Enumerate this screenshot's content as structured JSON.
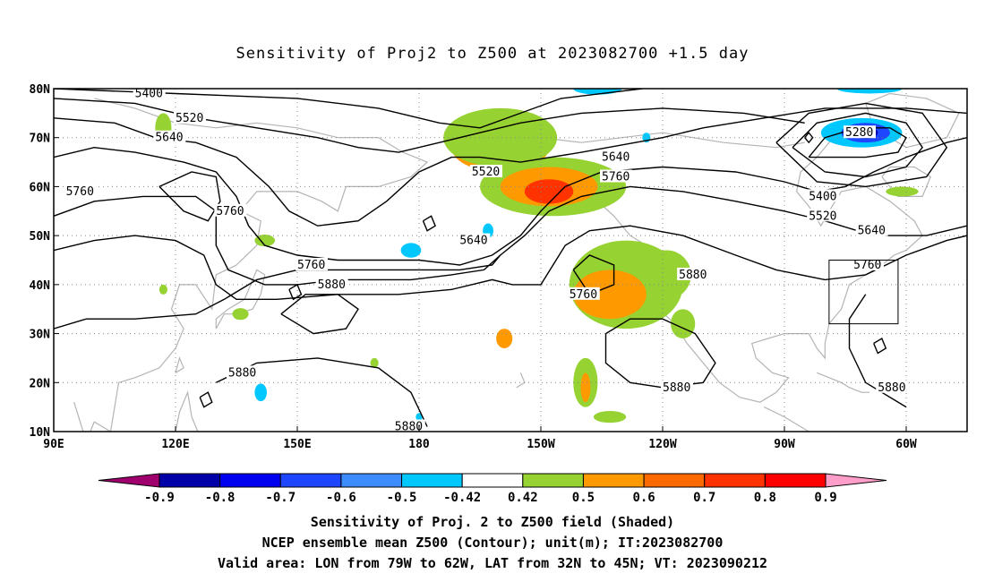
{
  "title": "Sensitivity of Proj2 to Z500 at 2023082700 +1.5 day",
  "map": {
    "lat_labels": [
      "80N",
      "70N",
      "60N",
      "50N",
      "40N",
      "30N",
      "20N",
      "10N"
    ],
    "lon_labels": [
      "90E",
      "120E",
      "150E",
      "180",
      "150W",
      "120W",
      "90W",
      "60W"
    ],
    "lon_range_deg_east": [
      90,
      315
    ],
    "lat_range_deg": [
      10,
      80
    ],
    "grid": "dotted",
    "contour_color": "#000000",
    "coastline_color": "#b4b4b4",
    "contour_labels": [
      {
        "text": "5400",
        "lon": 110,
        "lat": 79
      },
      {
        "text": "5520",
        "lon": 120,
        "lat": 74
      },
      {
        "text": "5640",
        "lon": 115,
        "lat": 70
      },
      {
        "text": "5760",
        "lon": 93,
        "lat": 59
      },
      {
        "text": "5760",
        "lon": 130,
        "lat": 55
      },
      {
        "text": "5760",
        "lon": 150,
        "lat": 44
      },
      {
        "text": "5880",
        "lon": 155,
        "lat": 40
      },
      {
        "text": "5520",
        "lon": 193,
        "lat": 63
      },
      {
        "text": "5640",
        "lon": 190,
        "lat": 49
      },
      {
        "text": "5640",
        "lon": 225,
        "lat": 66
      },
      {
        "text": "5760",
        "lon": 225,
        "lat": 62
      },
      {
        "text": "5880",
        "lon": 244,
        "lat": 42
      },
      {
        "text": "5760",
        "lon": 217,
        "lat": 38
      },
      {
        "text": "5880",
        "lon": 240,
        "lat": 19
      },
      {
        "text": "5880",
        "lon": 133,
        "lat": 22
      },
      {
        "text": "5880",
        "lon": 174,
        "lat": 11
      },
      {
        "text": "5280",
        "lon": 285,
        "lat": 71
      },
      {
        "text": "5400",
        "lon": 276,
        "lat": 58
      },
      {
        "text": "5520",
        "lon": 276,
        "lat": 54
      },
      {
        "text": "5640",
        "lon": 288,
        "lat": 51
      },
      {
        "text": "5760",
        "lon": 287,
        "lat": 44
      },
      {
        "text": "5880",
        "lon": 293,
        "lat": 19
      }
    ],
    "shaded_regions": [
      {
        "level": 0.6,
        "lon": 200,
        "lat": 68,
        "rlon": 12,
        "rlat": 5
      },
      {
        "level": 0.7,
        "lon": 200,
        "lat": 70,
        "rlon": 5,
        "rlat": 2
      },
      {
        "level": 0.5,
        "lon": 200,
        "lat": 70,
        "rlon": 14,
        "rlat": 6
      },
      {
        "level": 0.5,
        "lon": 213,
        "lat": 60,
        "rlon": 18,
        "rlat": 6
      },
      {
        "level": 0.6,
        "lon": 212,
        "lat": 60,
        "rlon": 12,
        "rlat": 4
      },
      {
        "level": 0.7,
        "lon": 212,
        "lat": 59,
        "rlon": 6,
        "rlat": 2.5
      },
      {
        "level": 0.5,
        "lon": 231,
        "lat": 40,
        "rlon": 14,
        "rlat": 9
      },
      {
        "level": 0.6,
        "lon": 227,
        "lat": 38,
        "rlon": 9,
        "rlat": 5
      },
      {
        "level": 0.5,
        "lon": 241,
        "lat": 42,
        "rlon": 6,
        "rlat": 5
      },
      {
        "level": 0.5,
        "lon": 245,
        "lat": 32,
        "rlon": 3,
        "rlat": 3
      },
      {
        "level": 0.5,
        "lon": 221,
        "lat": 20,
        "rlon": 3,
        "rlat": 5
      },
      {
        "level": 0.6,
        "lon": 221,
        "lat": 19,
        "rlon": 1.2,
        "rlat": 3
      },
      {
        "level": 0.5,
        "lon": 227,
        "lat": 13,
        "rlon": 4,
        "rlat": 1.2
      },
      {
        "level": 0.6,
        "lon": 201,
        "lat": 29,
        "rlon": 2,
        "rlat": 2
      },
      {
        "level": 0.5,
        "lon": 117,
        "lat": 72,
        "rlon": 2,
        "rlat": 3
      },
      {
        "level": 0.5,
        "lon": 142,
        "lat": 49,
        "rlon": 2.5,
        "rlat": 1.2
      },
      {
        "level": 0.5,
        "lon": 136,
        "lat": 34,
        "rlon": 2,
        "rlat": 1.2
      },
      {
        "level": 0.5,
        "lon": 117,
        "lat": 39,
        "rlon": 1,
        "rlat": 1
      },
      {
        "level": 0.5,
        "lon": 169,
        "lat": 24,
        "rlon": 1,
        "rlat": 1
      },
      {
        "level": 0.5,
        "lon": 299,
        "lat": 59,
        "rlon": 4,
        "rlat": 1
      },
      {
        "level": -0.42,
        "lon": 289,
        "lat": 71,
        "rlon": 10,
        "rlat": 3
      },
      {
        "level": -0.6,
        "lon": 290,
        "lat": 71,
        "rlon": 6,
        "rlat": 2
      },
      {
        "level": -0.8,
        "lon": 290,
        "lat": 71,
        "rlon": 3,
        "rlat": 1.2
      },
      {
        "level": -0.42,
        "lon": 224,
        "lat": 80,
        "rlon": 6,
        "rlat": 1.2
      },
      {
        "level": -0.42,
        "lon": 291,
        "lat": 80,
        "rlon": 8,
        "rlat": 1
      },
      {
        "level": -0.42,
        "lon": 178,
        "lat": 47,
        "rlon": 2.5,
        "rlat": 1.5
      },
      {
        "level": -0.42,
        "lon": 197,
        "lat": 51,
        "rlon": 1.3,
        "rlat": 1.5
      },
      {
        "level": -0.42,
        "lon": 141,
        "lat": 18,
        "rlon": 1.5,
        "rlat": 1.8
      },
      {
        "level": -0.42,
        "lon": 180,
        "lat": 13,
        "rlon": 0.8,
        "rlat": 0.8
      },
      {
        "level": -0.42,
        "lon": 236,
        "lat": 70,
        "rlon": 1,
        "rlat": 1
      }
    ],
    "valid_area": {
      "lon_w": [
        -79,
        -62
      ],
      "lat_n": [
        32,
        45
      ]
    }
  },
  "colorbar": {
    "colors": [
      "#a0006e",
      "#0000a8",
      "#0000f0",
      "#1e46ff",
      "#3c8cff",
      "#00c8ff",
      "#ffffff",
      "#96d232",
      "#ff9900",
      "#ff6a00",
      "#ff3200",
      "#ff0000",
      "#ff9ec8"
    ],
    "tick_labels": [
      "-0.9",
      "-0.8",
      "-0.7",
      "-0.6",
      "-0.5",
      "-0.42",
      "0.42",
      "0.5",
      "0.6",
      "0.7",
      "0.8",
      "0.9"
    ]
  },
  "captions": {
    "line1": "Sensitivity of Proj. 2 to Z500 field (Shaded)",
    "line2": "NCEP ensemble mean Z500 (Contour); unit(m); IT:2023082700",
    "line3": "Valid area: LON from 79W to 62W, LAT from 32N to 45N; VT: 2023090212"
  }
}
